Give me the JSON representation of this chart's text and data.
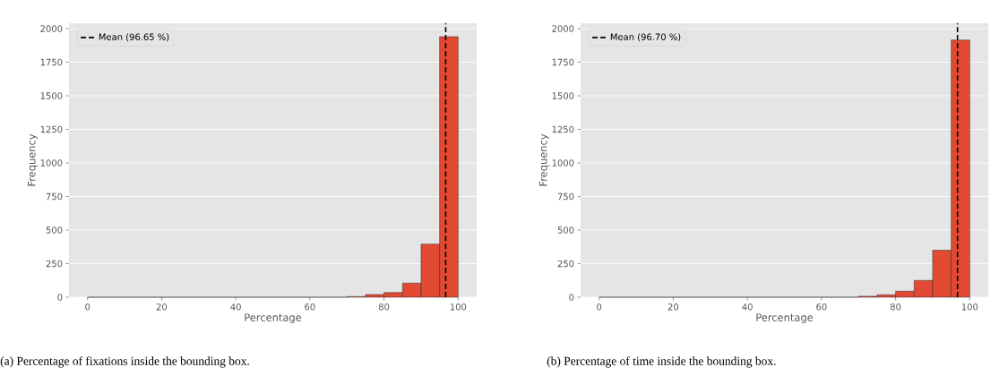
{
  "chart_data": [
    {
      "type": "histogram",
      "bins": [
        0,
        5,
        10,
        15,
        20,
        25,
        30,
        35,
        40,
        45,
        50,
        55,
        60,
        65,
        70,
        75,
        80,
        85,
        90,
        95,
        100
      ],
      "values": [
        0,
        0,
        0,
        0,
        0,
        0,
        0,
        0,
        0,
        0,
        0,
        0,
        0,
        0,
        5,
        20,
        35,
        105,
        395,
        1940
      ],
      "color": "#e24a33",
      "xlabel": "Percentage",
      "ylabel": "Frequency",
      "xlim": [
        -5,
        105
      ],
      "ylim": [
        0,
        2040
      ],
      "xticks": [
        0,
        20,
        40,
        60,
        80,
        100
      ],
      "yticks": [
        0,
        250,
        500,
        750,
        1000,
        1250,
        1500,
        1750,
        2000
      ],
      "ref_lines": [
        {
          "axis": "x",
          "value": 96.65,
          "label": "Mean (96.65 %)",
          "color": "#000000",
          "line_style": "dashed"
        }
      ],
      "legend": "top left",
      "grid": "y",
      "annotations": [
        "(a) Percentage of fixations inside the bounding box."
      ]
    },
    {
      "type": "histogram",
      "bins": [
        0,
        5,
        10,
        15,
        20,
        25,
        30,
        35,
        40,
        45,
        50,
        55,
        60,
        65,
        70,
        75,
        80,
        85,
        90,
        95,
        100
      ],
      "values": [
        0,
        0,
        0,
        0,
        0,
        0,
        0,
        0,
        0,
        0,
        0,
        0,
        0,
        0,
        7,
        18,
        45,
        125,
        350,
        1915
      ],
      "color": "#e24a33",
      "xlabel": "Percentage",
      "ylabel": "Frequency",
      "xlim": [
        -5,
        105
      ],
      "ylim": [
        0,
        2040
      ],
      "xticks": [
        0,
        20,
        40,
        60,
        80,
        100
      ],
      "yticks": [
        0,
        250,
        500,
        750,
        1000,
        1250,
        1500,
        1750,
        2000
      ],
      "ref_lines": [
        {
          "axis": "x",
          "value": 96.7,
          "label": "Mean (96.70 %)",
          "color": "#000000",
          "line_style": "dashed"
        }
      ],
      "legend": "top left",
      "grid": "y",
      "annotations": [
        "(b) Percentage of time inside the bounding box."
      ]
    }
  ]
}
